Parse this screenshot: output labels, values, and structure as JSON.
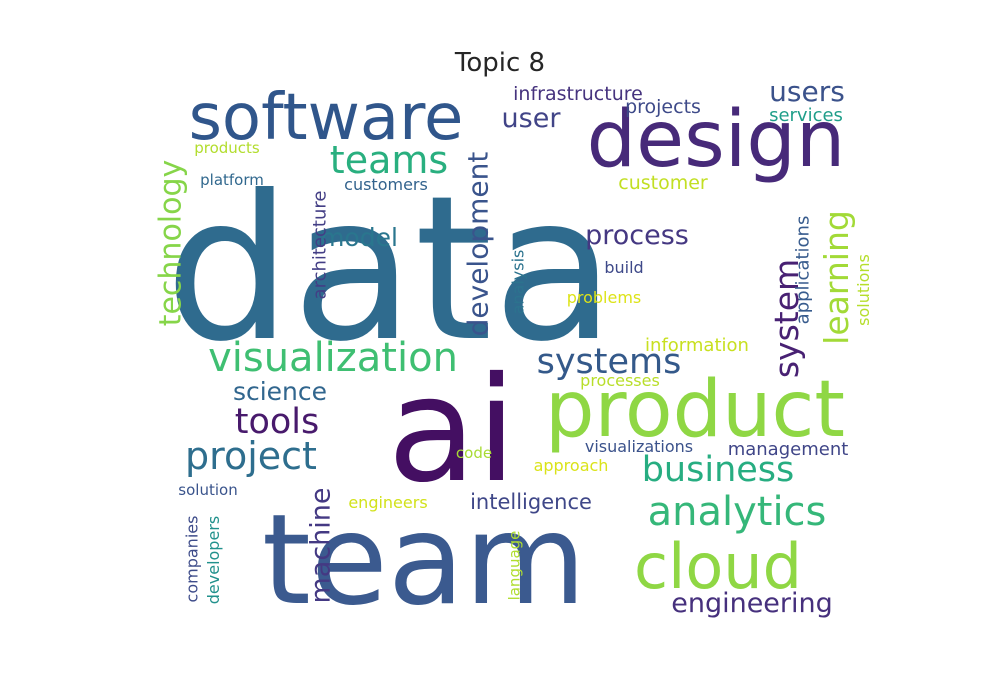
{
  "title": "Topic 8",
  "colors": {
    "palette": "viridis",
    "background": "#ffffff",
    "title": "#262626"
  },
  "words": [
    {
      "text": "data",
      "color": "#2f6b8e"
    },
    {
      "text": "ai",
      "color": "#440f62"
    },
    {
      "text": "team",
      "color": "#3b5a8f"
    },
    {
      "text": "product",
      "color": "#8fd744"
    },
    {
      "text": "design",
      "color": "#472a79"
    },
    {
      "text": "software",
      "color": "#30568b"
    },
    {
      "text": "cloud",
      "color": "#8fd744"
    },
    {
      "text": "visualization",
      "color": "#3fbf72"
    },
    {
      "text": "analytics",
      "color": "#35b779"
    },
    {
      "text": "business",
      "color": "#27ad81"
    },
    {
      "text": "project",
      "color": "#2e6e8e"
    },
    {
      "text": "teams",
      "color": "#29af7f"
    },
    {
      "text": "systems",
      "color": "#34598a"
    },
    {
      "text": "tools",
      "color": "#481a6c"
    },
    {
      "text": "system",
      "color": "#482173"
    },
    {
      "text": "learning",
      "color": "#a2da37"
    },
    {
      "text": "engineering",
      "color": "#46307d"
    },
    {
      "text": "users",
      "color": "#3b528b"
    },
    {
      "text": "development",
      "color": "#3a548c"
    },
    {
      "text": "technology",
      "color": "#86d549"
    },
    {
      "text": "machine",
      "color": "#443983"
    },
    {
      "text": "process",
      "color": "#453882"
    },
    {
      "text": "model",
      "color": "#2a768e"
    },
    {
      "text": "science",
      "color": "#31668e"
    },
    {
      "text": "user",
      "color": "#414487"
    },
    {
      "text": "intelligence",
      "color": "#3f4788"
    },
    {
      "text": "infrastructure",
      "color": "#46337e"
    },
    {
      "text": "architecture",
      "color": "#433e85"
    },
    {
      "text": "management",
      "color": "#404688"
    },
    {
      "text": "customer",
      "color": "#c2df23"
    },
    {
      "text": "projects",
      "color": "#3e4a89"
    },
    {
      "text": "services",
      "color": "#1f9e89"
    },
    {
      "text": "information",
      "color": "#c8e020"
    },
    {
      "text": "applications",
      "color": "#375b8d"
    },
    {
      "text": "solutions",
      "color": "#b5de2b"
    },
    {
      "text": "customers",
      "color": "#33638d"
    },
    {
      "text": "analysis",
      "color": "#2c738e"
    },
    {
      "text": "build",
      "color": "#3e4989"
    },
    {
      "text": "problems",
      "color": "#dde318"
    },
    {
      "text": "processes",
      "color": "#b8de29"
    },
    {
      "text": "visualizations",
      "color": "#3b528b"
    },
    {
      "text": "approach",
      "color": "#dae319"
    },
    {
      "text": "code",
      "color": "#a8db34"
    },
    {
      "text": "engineers",
      "color": "#d2e21b"
    },
    {
      "text": "companies",
      "color": "#3e4c8a"
    },
    {
      "text": "developers",
      "color": "#21918c"
    },
    {
      "text": "language",
      "color": "#b0dd2f"
    },
    {
      "text": "solution",
      "color": "#3a548c"
    },
    {
      "text": "platform",
      "color": "#31688e"
    },
    {
      "text": "products",
      "color": "#b2dd2d"
    }
  ]
}
